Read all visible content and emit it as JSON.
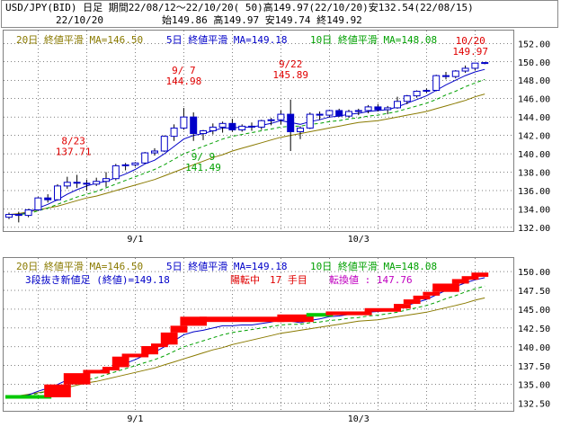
{
  "header": {
    "line1": "USD/JPY(BID) 日足 期間22/08/12～22/10/20( 50)高149.97(22/10/20)安132.54(22/08/15)",
    "line2_date": "22/10/20",
    "line2_ohlc": "始149.86 高149.97 安149.74 終149.92"
  },
  "legend": {
    "ma20": "20日 終値平滑 MA=146.50",
    "ma5": "5日 終値平滑 MA=149.18",
    "ma10": "10日 終値平滑 MA=148.08"
  },
  "lower_info": {
    "prefix": "3段抜き新値足 (終値)=149.18",
    "state": "陽転中",
    "count": "17 手目",
    "reversal": "転換値 : 147.76"
  },
  "colors": {
    "up": "#0000c8",
    "down": "#0000c8",
    "ma5": "#0000c8",
    "ma10": "#00a000",
    "ma20": "#8a7a00",
    "annot": "#e00000",
    "brick_up": "#ff0000",
    "brick_down": "#00c800",
    "grid": "#000000"
  },
  "chart_data": [
    {
      "type": "candlestick",
      "title": "USD/JPY(BID) 日足",
      "ylim": [
        131.6,
        153.4
      ],
      "yticks": [
        "132.00",
        "134.00",
        "136.00",
        "138.00",
        "140.00",
        "142.00",
        "144.00",
        "146.00",
        "148.00",
        "150.00",
        "152.00"
      ],
      "xticks": [
        {
          "index": 13,
          "label": "9/1"
        },
        {
          "index": 36,
          "label": "10/3"
        }
      ],
      "annotations": [
        {
          "date": "8/23",
          "value": "137.71",
          "index": 7
        },
        {
          "date": "9/ 7",
          "value": "144.98",
          "index": 18
        },
        {
          "date": "9/ 9",
          "value": "141.49",
          "index": 20
        },
        {
          "date": "9/22",
          "value": "145.89",
          "index": 29
        },
        {
          "date": "10/20",
          "value": "149.97",
          "index": 49
        }
      ],
      "ohlc": [
        [
          133.1,
          133.6,
          132.9,
          133.4
        ],
        [
          133.4,
          133.7,
          132.54,
          133.3
        ],
        [
          133.3,
          134.0,
          133.1,
          133.9
        ],
        [
          133.9,
          135.3,
          133.8,
          135.2
        ],
        [
          135.2,
          135.6,
          134.7,
          135.0
        ],
        [
          135.0,
          136.7,
          134.9,
          136.5
        ],
        [
          136.5,
          137.5,
          136.2,
          136.9
        ],
        [
          136.9,
          137.71,
          136.3,
          136.8
        ],
        [
          136.8,
          137.2,
          136.0,
          136.7
        ],
        [
          136.7,
          137.4,
          136.5,
          137.0
        ],
        [
          137.0,
          138.0,
          136.4,
          137.3
        ],
        [
          137.3,
          138.9,
          137.1,
          138.7
        ],
        [
          138.7,
          139.0,
          138.2,
          138.8
        ],
        [
          138.8,
          139.1,
          138.6,
          139.0
        ],
        [
          139.0,
          140.2,
          138.9,
          140.1
        ],
        [
          140.1,
          140.6,
          139.8,
          140.3
        ],
        [
          140.3,
          142.0,
          140.2,
          141.9
        ],
        [
          141.9,
          143.2,
          141.4,
          142.8
        ],
        [
          142.8,
          144.98,
          142.6,
          144.0
        ],
        [
          144.0,
          144.5,
          141.4,
          142.2
        ],
        [
          142.2,
          142.6,
          141.49,
          142.5
        ],
        [
          142.5,
          143.3,
          142.1,
          142.9
        ],
        [
          142.9,
          143.5,
          142.3,
          143.3
        ],
        [
          143.3,
          143.8,
          142.4,
          142.6
        ],
        [
          142.6,
          143.2,
          142.4,
          143.0
        ],
        [
          143.0,
          143.4,
          142.5,
          142.9
        ],
        [
          142.9,
          143.7,
          142.6,
          143.6
        ],
        [
          143.6,
          143.9,
          143.1,
          143.7
        ],
        [
          143.7,
          144.7,
          143.2,
          144.3
        ],
        [
          144.3,
          145.89,
          140.3,
          142.4
        ],
        [
          142.4,
          143.0,
          141.6,
          142.8
        ],
        [
          142.8,
          144.5,
          142.7,
          144.3
        ],
        [
          144.3,
          144.6,
          143.7,
          144.2
        ],
        [
          144.2,
          144.8,
          144.0,
          144.7
        ],
        [
          144.7,
          144.9,
          144.0,
          144.1
        ],
        [
          144.1,
          144.8,
          143.9,
          144.6
        ],
        [
          144.6,
          144.9,
          144.2,
          144.7
        ],
        [
          144.7,
          145.3,
          144.4,
          145.1
        ],
        [
          145.1,
          145.4,
          144.6,
          144.8
        ],
        [
          144.8,
          145.2,
          144.3,
          145.0
        ],
        [
          145.0,
          146.2,
          144.9,
          145.7
        ],
        [
          145.7,
          146.4,
          145.4,
          146.3
        ],
        [
          146.3,
          146.9,
          146.1,
          146.8
        ],
        [
          146.8,
          147.1,
          146.6,
          146.9
        ],
        [
          146.9,
          148.6,
          146.8,
          148.5
        ],
        [
          148.5,
          148.9,
          148.1,
          148.4
        ],
        [
          148.4,
          149.1,
          148.2,
          149.0
        ],
        [
          149.0,
          149.6,
          148.8,
          149.3
        ],
        [
          149.3,
          149.8,
          149.1,
          149.86
        ],
        [
          149.86,
          149.97,
          149.74,
          149.92
        ]
      ],
      "series": [
        {
          "name": "20日 終値平滑",
          "values": [
            133.4,
            133.5,
            133.7,
            133.9,
            134.1,
            134.3,
            134.6,
            134.9,
            135.2,
            135.4,
            135.7,
            136.0,
            136.3,
            136.6,
            136.9,
            137.2,
            137.6,
            138.0,
            138.4,
            138.8,
            139.2,
            139.6,
            139.9,
            140.3,
            140.6,
            140.9,
            141.2,
            141.5,
            141.8,
            142.0,
            142.2,
            142.4,
            142.6,
            142.8,
            143.0,
            143.2,
            143.4,
            143.5,
            143.6,
            143.8,
            144.0,
            144.2,
            144.4,
            144.6,
            144.9,
            145.2,
            145.5,
            145.8,
            146.2,
            146.5
          ]
        },
        {
          "name": "5日 終値平滑",
          "values": [
            133.4,
            133.4,
            133.6,
            134.1,
            134.5,
            135.0,
            135.6,
            136.1,
            136.5,
            136.8,
            137.0,
            137.4,
            137.8,
            138.3,
            138.9,
            139.3,
            140.0,
            140.8,
            141.6,
            142.0,
            142.2,
            142.5,
            142.8,
            142.8,
            142.9,
            142.9,
            143.1,
            143.3,
            143.6,
            143.4,
            143.2,
            143.5,
            143.7,
            144.0,
            144.1,
            144.3,
            144.4,
            144.6,
            144.7,
            144.8,
            145.1,
            145.5,
            145.9,
            146.3,
            146.9,
            147.5,
            148.0,
            148.5,
            148.9,
            149.18
          ]
        },
        {
          "name": "10日 終値平滑",
          "values": [
            133.4,
            133.4,
            133.5,
            133.8,
            134.1,
            134.5,
            134.9,
            135.3,
            135.6,
            135.9,
            136.3,
            136.7,
            137.1,
            137.5,
            137.9,
            138.3,
            138.8,
            139.4,
            140.0,
            140.4,
            140.8,
            141.2,
            141.6,
            141.9,
            142.1,
            142.3,
            142.5,
            142.7,
            142.9,
            143.0,
            143.0,
            143.2,
            143.3,
            143.5,
            143.6,
            143.8,
            143.9,
            144.1,
            144.2,
            144.4,
            144.6,
            144.9,
            145.2,
            145.5,
            145.9,
            146.4,
            146.8,
            147.3,
            147.7,
            148.08
          ]
        }
      ]
    },
    {
      "type": "bar",
      "title": "3段抜き新値足 (終値)",
      "ylim": [
        131.5,
        151.8
      ],
      "yticks": [
        "132.50",
        "135.00",
        "137.50",
        "140.00",
        "142.50",
        "145.00",
        "147.50",
        "150.00"
      ],
      "xticks": [
        {
          "index": 13,
          "label": "9/1"
        },
        {
          "index": 36,
          "label": "10/3"
        }
      ],
      "bricks": [
        {
          "open": 133.4,
          "close": 133.3,
          "dir": "down",
          "from": 0,
          "to": 4
        },
        {
          "open": 133.3,
          "close": 135.0,
          "dir": "up",
          "from": 4,
          "to": 6
        },
        {
          "open": 135.0,
          "close": 136.5,
          "dir": "up",
          "from": 6,
          "to": 8
        },
        {
          "open": 136.5,
          "close": 136.9,
          "dir": "up",
          "from": 8,
          "to": 10
        },
        {
          "open": 136.9,
          "close": 137.3,
          "dir": "up",
          "from": 10,
          "to": 11
        },
        {
          "open": 137.3,
          "close": 138.7,
          "dir": "up",
          "from": 11,
          "to": 12
        },
        {
          "open": 138.7,
          "close": 139.0,
          "dir": "up",
          "from": 12,
          "to": 14
        },
        {
          "open": 139.0,
          "close": 140.1,
          "dir": "up",
          "from": 14,
          "to": 15
        },
        {
          "open": 140.1,
          "close": 140.3,
          "dir": "up",
          "from": 15,
          "to": 16
        },
        {
          "open": 140.3,
          "close": 141.9,
          "dir": "up",
          "from": 16,
          "to": 17
        },
        {
          "open": 141.9,
          "close": 142.8,
          "dir": "up",
          "from": 17,
          "to": 18
        },
        {
          "open": 142.8,
          "close": 144.0,
          "dir": "up",
          "from": 18,
          "to": 20
        },
        {
          "open": 144.0,
          "close": 143.3,
          "dir": "up",
          "from": 20,
          "to": 28
        },
        {
          "open": 143.3,
          "close": 144.3,
          "dir": "up",
          "from": 28,
          "to": 31
        },
        {
          "open": 144.3,
          "close": 144.2,
          "dir": "down",
          "from": 31,
          "to": 33
        },
        {
          "open": 144.2,
          "close": 144.7,
          "dir": "up",
          "from": 33,
          "to": 37
        },
        {
          "open": 144.7,
          "close": 145.1,
          "dir": "up",
          "from": 37,
          "to": 40
        },
        {
          "open": 145.1,
          "close": 145.7,
          "dir": "up",
          "from": 40,
          "to": 41
        },
        {
          "open": 145.7,
          "close": 146.3,
          "dir": "up",
          "from": 41,
          "to": 42
        },
        {
          "open": 146.3,
          "close": 146.8,
          "dir": "up",
          "from": 42,
          "to": 43
        },
        {
          "open": 146.8,
          "close": 147.3,
          "dir": "up",
          "from": 43,
          "to": 44
        },
        {
          "open": 147.3,
          "close": 148.4,
          "dir": "up",
          "from": 44,
          "to": 46
        },
        {
          "open": 148.4,
          "close": 149.0,
          "dir": "up",
          "from": 46,
          "to": 47
        },
        {
          "open": 149.0,
          "close": 149.3,
          "dir": "up",
          "from": 47,
          "to": 48
        },
        {
          "open": 149.3,
          "close": 149.86,
          "dir": "up",
          "from": 48,
          "to": 49
        }
      ]
    }
  ]
}
